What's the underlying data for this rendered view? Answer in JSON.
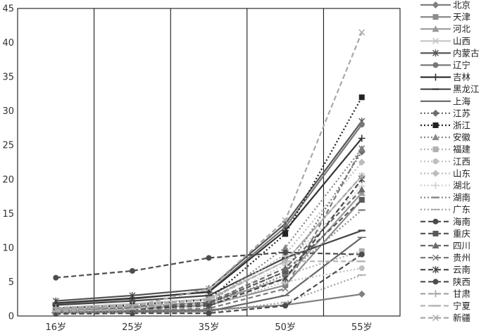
{
  "chart_data": {
    "type": "line",
    "categories": [
      "16岁",
      "25岁",
      "35岁",
      "50岁",
      "55岁"
    ],
    "ylim": [
      0,
      45
    ],
    "yticks": [
      0,
      5,
      10,
      15,
      20,
      25,
      30,
      35,
      40,
      45
    ],
    "grid": "vertical",
    "legend_position": "right",
    "series": [
      {
        "name": "北京",
        "values": [
          0.6,
          0.8,
          0.9,
          1.6,
          3.2
        ],
        "color": "#7f7f7f",
        "dash": "solid",
        "marker": "diamond"
      },
      {
        "name": "天津",
        "values": [
          0.8,
          1.2,
          1.6,
          4.5,
          17.0
        ],
        "color": "#8c8c8c",
        "dash": "solid",
        "marker": "square"
      },
      {
        "name": "河北",
        "values": [
          1.0,
          1.4,
          2.0,
          5.5,
          18.0
        ],
        "color": "#999999",
        "dash": "solid",
        "marker": "triangle"
      },
      {
        "name": "山西",
        "values": [
          1.2,
          1.8,
          2.5,
          8.0,
          20.5
        ],
        "color": "#c4c4c4",
        "dash": "solid",
        "marker": "x"
      },
      {
        "name": "内蒙古",
        "values": [
          2.2,
          3.0,
          4.0,
          13.5,
          28.5
        ],
        "color": "#555555",
        "dash": "solid",
        "marker": "star"
      },
      {
        "name": "辽宁",
        "values": [
          1.8,
          2.5,
          3.6,
          13.0,
          28.0
        ],
        "color": "#777777",
        "dash": "solid",
        "marker": "circle"
      },
      {
        "name": "吉林",
        "values": [
          1.9,
          2.6,
          3.5,
          12.5,
          26.0
        ],
        "color": "#333333",
        "dash": "solid",
        "marker": "plus"
      },
      {
        "name": "黑龙江",
        "values": [
          1.6,
          2.2,
          3.0,
          8.5,
          12.5
        ],
        "color": "#444444",
        "dash": "solid",
        "marker": "dash"
      },
      {
        "name": "上海",
        "values": [
          0.5,
          0.6,
          0.7,
          3.0,
          11.5
        ],
        "color": "#666666",
        "dash": "solid",
        "marker": "line"
      },
      {
        "name": "江苏",
        "values": [
          0.9,
          1.3,
          1.9,
          6.5,
          24.0
        ],
        "color": "#6e6e6e",
        "dash": "dot",
        "marker": "diamond"
      },
      {
        "name": "浙江",
        "values": [
          1.1,
          1.6,
          2.4,
          12.0,
          32.0
        ],
        "color": "#222222",
        "dash": "dot",
        "marker": "square"
      },
      {
        "name": "安徽",
        "values": [
          0.8,
          1.1,
          1.8,
          10.0,
          24.5
        ],
        "color": "#888888",
        "dash": "dot",
        "marker": "triangle"
      },
      {
        "name": "福建",
        "values": [
          0.7,
          0.9,
          1.5,
          6.0,
          9.5
        ],
        "color": "#b0b0b0",
        "dash": "dot",
        "marker": "square"
      },
      {
        "name": "江西",
        "values": [
          0.6,
          0.9,
          1.4,
          5.0,
          7.0
        ],
        "color": "#bfbfbf",
        "dash": "dot",
        "marker": "circle"
      },
      {
        "name": "山东",
        "values": [
          1.0,
          1.3,
          2.1,
          9.0,
          22.5
        ],
        "color": "#bcbcbc",
        "dash": "dot",
        "marker": "diamond"
      },
      {
        "name": "湖北",
        "values": [
          0.9,
          1.2,
          1.8,
          7.5,
          19.0
        ],
        "color": "#d0d0d0",
        "dash": "dot",
        "marker": "plus"
      },
      {
        "name": "湖南",
        "values": [
          0.7,
          1.0,
          1.6,
          6.0,
          15.5
        ],
        "color": "#8a8a8a",
        "dash": "dot",
        "marker": "dash"
      },
      {
        "name": "广东",
        "values": [
          0.4,
          0.5,
          0.6,
          2.0,
          6.0
        ],
        "color": "#a0a0a0",
        "dash": "dot",
        "marker": "line"
      },
      {
        "name": "海南",
        "values": [
          0.3,
          0.4,
          0.4,
          1.5,
          9.0
        ],
        "color": "#4a4a4a",
        "dash": "dash",
        "marker": "circle"
      },
      {
        "name": "重庆",
        "values": [
          0.8,
          1.2,
          1.8,
          6.5,
          17.0
        ],
        "color": "#5a5a5a",
        "dash": "dash",
        "marker": "square"
      },
      {
        "name": "四川",
        "values": [
          0.9,
          1.3,
          2.0,
          7.0,
          18.5
        ],
        "color": "#6a6a6a",
        "dash": "dash",
        "marker": "triangle"
      },
      {
        "name": "贵州",
        "values": [
          0.6,
          0.8,
          1.1,
          4.0,
          24.5
        ],
        "color": "#7a7a7a",
        "dash": "dash",
        "marker": "x"
      },
      {
        "name": "云南",
        "values": [
          0.8,
          1.0,
          1.5,
          5.5,
          20.0
        ],
        "color": "#454545",
        "dash": "dash",
        "marker": "star"
      },
      {
        "name": "陕西",
        "values": [
          5.6,
          6.6,
          8.5,
          9.3,
          9.0
        ],
        "color": "#4d4d4d",
        "dash": "dash",
        "marker": "circle"
      },
      {
        "name": "甘肃",
        "values": [
          1.2,
          1.6,
          2.4,
          8.0,
          20.5
        ],
        "color": "#a5a5a5",
        "dash": "dash",
        "marker": "plus"
      },
      {
        "name": "宁夏",
        "values": [
          0.7,
          1.0,
          2.6,
          8.0,
          8.0
        ],
        "color": "#b5b5b5",
        "dash": "dash",
        "marker": "dash"
      },
      {
        "name": "新疆",
        "values": [
          0.9,
          1.4,
          4.0,
          14.0,
          41.5
        ],
        "color": "#a8a8a8",
        "dash": "dash",
        "marker": "x"
      }
    ]
  }
}
